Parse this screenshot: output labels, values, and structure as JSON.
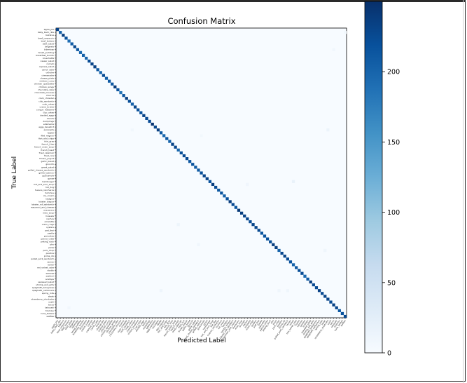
{
  "chart_data": {
    "type": "heatmap",
    "title": "Confusion Matrix",
    "xlabel": "Predicted Label",
    "ylabel": "True Label",
    "colormap": "Blues",
    "vmin": 0,
    "vmax": 250,
    "colorbar_ticks": [
      0,
      50,
      100,
      150,
      200
    ],
    "classes": [
      "apple_pie",
      "baby_back_ribs",
      "baklava",
      "beef_carpaccio",
      "beef_tartare",
      "beet_salad",
      "beignets",
      "bibimbap",
      "bread_pudding",
      "breakfast_burrito",
      "bruschetta",
      "caesar_salad",
      "cannoli",
      "caprese_salad",
      "carrot_cake",
      "ceviche",
      "cheesecake",
      "cheese_plate",
      "chicken_curry",
      "chicken_quesadilla",
      "chicken_wings",
      "chocolate_cake",
      "chocolate_mousse",
      "churros",
      "clam_chowder",
      "club_sandwich",
      "crab_cakes",
      "creme_brulee",
      "croque_madame",
      "cup_cakes",
      "deviled_eggs",
      "donuts",
      "dumplings",
      "edamame",
      "eggs_benedict",
      "escargots",
      "falafel",
      "filet_mignon",
      "fish_and_chips",
      "foie_gras",
      "french_fries",
      "french_onion_soup",
      "french_toast",
      "fried_calamari",
      "fried_rice",
      "frozen_yogurt",
      "garlic_bread",
      "gnocchi",
      "greek_salad",
      "grilled_cheese_sandwich",
      "grilled_salmon",
      "guacamole",
      "gyoza",
      "hamburger",
      "hot_and_sour_soup",
      "hot_dog",
      "huevos_rancheros",
      "hummus",
      "ice_cream",
      "lasagna",
      "lobster_bisque",
      "lobster_roll_sandwich",
      "macaroni_and_cheese",
      "macarons",
      "miso_soup",
      "mussels",
      "nachos",
      "omelette",
      "onion_rings",
      "oysters",
      "pad_thai",
      "paella",
      "pancakes",
      "panna_cotta",
      "peking_duck",
      "pho",
      "pizza",
      "pork_chop",
      "poutine",
      "prime_rib",
      "pulled_pork_sandwich",
      "ramen",
      "ravioli",
      "red_velvet_cake",
      "risotto",
      "samosa",
      "sashimi",
      "scallops",
      "seaweed_salad",
      "shrimp_and_grits",
      "spaghetti_bolognese",
      "spaghetti_carbonara",
      "spring_rolls",
      "steak",
      "strawberry_shortcake",
      "sushi",
      "tacos",
      "takoyaki",
      "tiramisu",
      "tuna_tartare",
      "waffles"
    ],
    "diagonal_values": [
      232,
      205,
      238,
      220,
      190,
      208,
      228,
      214,
      196,
      204,
      201,
      224,
      231,
      235,
      212,
      199,
      225,
      206,
      210,
      213,
      241,
      218,
      185,
      215,
      237,
      222,
      203,
      230,
      220,
      219,
      233,
      226,
      224,
      246,
      228,
      236,
      211,
      196,
      215,
      202,
      232,
      229,
      197,
      221,
      226,
      227,
      214,
      218,
      209,
      210,
      221,
      231,
      234,
      218,
      238,
      224,
      211,
      217,
      204,
      220,
      239,
      226,
      215,
      241,
      237,
      233,
      229,
      224,
      230,
      229,
      226,
      216,
      218,
      220,
      223,
      238,
      236,
      201,
      228,
      232,
      225,
      218,
      200,
      213,
      222,
      224,
      196,
      209,
      238,
      226,
      224,
      233,
      226,
      232,
      231,
      225,
      234,
      229,
      211,
      218,
      226
    ],
    "off_diagonal_highlights": [
      {
        "row": 7,
        "col": 96,
        "value": 7
      },
      {
        "row": 35,
        "col": 26,
        "value": 8
      },
      {
        "row": 35,
        "col": 94,
        "value": 14
      },
      {
        "row": 37,
        "col": 50,
        "value": 6
      },
      {
        "row": 53,
        "col": 82,
        "value": 18
      },
      {
        "row": 54,
        "col": 66,
        "value": 9
      },
      {
        "row": 68,
        "col": 42,
        "value": 12
      },
      {
        "row": 75,
        "col": 49,
        "value": 9
      },
      {
        "row": 77,
        "col": 93,
        "value": 10
      },
      {
        "row": 91,
        "col": 36,
        "value": 11
      },
      {
        "row": 91,
        "col": 77,
        "value": 10
      },
      {
        "row": 91,
        "col": 80,
        "value": 10
      },
      {
        "row": 97,
        "col": 4,
        "value": 7
      },
      {
        "row": 1,
        "col": 100,
        "value": 6
      }
    ]
  }
}
